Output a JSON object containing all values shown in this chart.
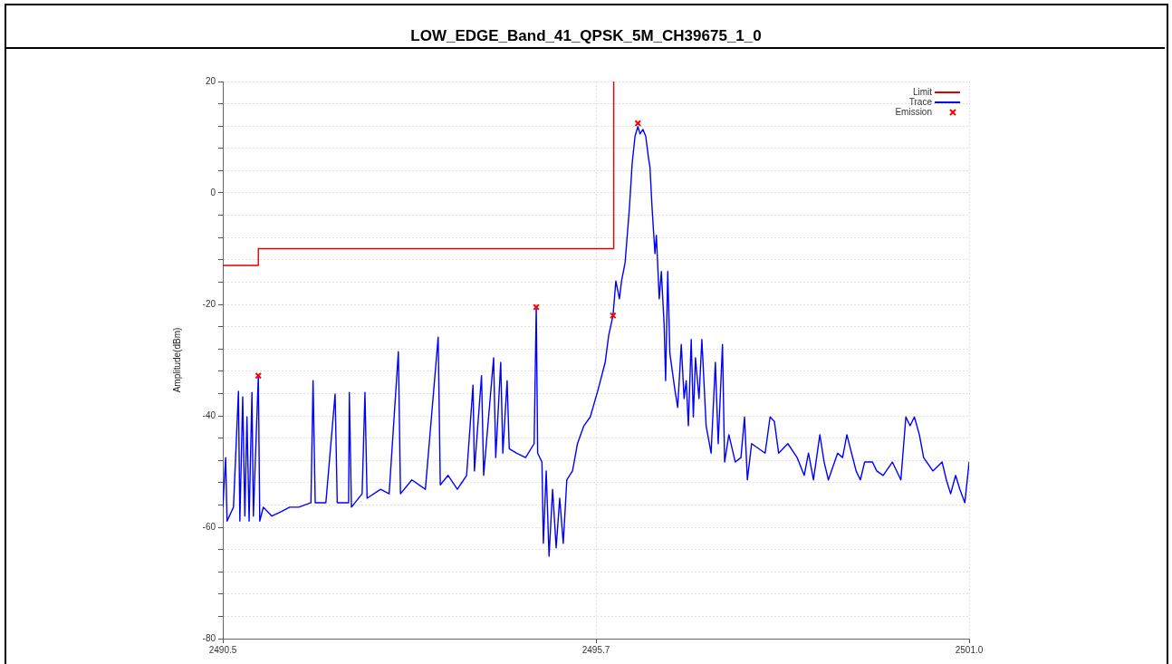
{
  "chart_data": {
    "type": "line",
    "title": "LOW_EDGE_Band_41_QPSK_5M_CH39675_1_0",
    "ylabel": "Amplitude(dBm)",
    "xlim": [
      2490.5,
      2501.0
    ],
    "xticks": [
      2490.5,
      {
        "value": 2495.75,
        "label": "2495.7"
      },
      {
        "value": 2501.0,
        "label": "2501.0"
      }
    ],
    "ylim": [
      -80,
      20
    ],
    "yticks": [
      -80,
      {
        "value": -76,
        "label": null
      },
      {
        "value": -72,
        "label": null
      },
      {
        "value": -68,
        "label": null
      },
      {
        "value": -64,
        "label": null
      },
      -60,
      {
        "value": -56,
        "label": null
      },
      {
        "value": -52,
        "label": null
      },
      {
        "value": -48,
        "label": null
      },
      {
        "value": -44,
        "label": null
      },
      -40,
      {
        "value": -36,
        "label": null
      },
      {
        "value": -32,
        "label": null
      },
      {
        "value": -28,
        "label": null
      },
      {
        "value": -24,
        "label": null
      },
      -20,
      {
        "value": -16,
        "label": null
      },
      {
        "value": -12,
        "label": null
      },
      {
        "value": -8,
        "label": null
      },
      {
        "value": -4,
        "label": null
      },
      0,
      {
        "value": 4,
        "label": null
      },
      {
        "value": 8,
        "label": null
      },
      {
        "value": 12,
        "label": null
      },
      {
        "value": 16,
        "label": null
      },
      20
    ],
    "grid": true,
    "legend": "top right",
    "marker": "none",
    "series": [
      {
        "name": "Limit",
        "color": "#e00000",
        "x": [
          2490.5,
          2491.0,
          2491.0,
          2496.0,
          2496.0
        ],
        "values": [
          -13,
          -13,
          -10,
          -10,
          20
        ]
      },
      {
        "name": "Trace",
        "color": "#0000ff",
        "x": [
          2490.5,
          2490.54,
          2490.56,
          2490.65,
          2490.72,
          2490.74,
          2490.78,
          2490.81,
          2490.84,
          2490.87,
          2490.91,
          2490.93,
          2491.0,
          2491.02,
          2491.07,
          2491.19,
          2491.32,
          2491.44,
          2491.57,
          2491.74,
          2491.77,
          2491.8,
          2491.95,
          2492.08,
          2492.11,
          2492.27,
          2492.28,
          2492.31,
          2492.46,
          2492.5,
          2492.53,
          2492.72,
          2492.84,
          2492.97,
          2493.0,
          2493.16,
          2493.35,
          2493.53,
          2493.56,
          2493.67,
          2493.8,
          2493.93,
          2494.02,
          2494.04,
          2494.14,
          2494.17,
          2494.31,
          2494.34,
          2494.41,
          2494.44,
          2494.5,
          2494.53,
          2494.63,
          2494.76,
          2494.88,
          2494.91,
          2494.93,
          2494.99,
          2495.01,
          2495.05,
          2495.09,
          2495.14,
          2495.19,
          2495.24,
          2495.29,
          2495.34,
          2495.42,
          2495.49,
          2495.58,
          2495.67,
          2495.78,
          2495.88,
          2495.93,
          2495.99,
          2496.03,
          2496.08,
          2496.11,
          2496.16,
          2496.22,
          2496.26,
          2496.3,
          2496.34,
          2496.37,
          2496.41,
          2496.45,
          2496.49,
          2496.51,
          2496.54,
          2496.58,
          2496.6,
          2496.64,
          2496.67,
          2496.71,
          2496.73,
          2496.76,
          2496.79,
          2496.86,
          2496.9,
          2496.95,
          2496.99,
          2497.02,
          2497.05,
          2497.09,
          2497.12,
          2497.15,
          2497.2,
          2497.24,
          2497.3,
          2497.37,
          2497.43,
          2497.47,
          2497.53,
          2497.56,
          2497.62,
          2497.71,
          2497.79,
          2497.84,
          2497.88,
          2497.94,
          2498.13,
          2498.2,
          2498.26,
          2498.32,
          2498.45,
          2498.58,
          2498.68,
          2498.74,
          2498.81,
          2498.9,
          2498.96,
          2499.02,
          2499.15,
          2499.22,
          2499.28,
          2499.41,
          2499.47,
          2499.53,
          2499.64,
          2499.7,
          2499.79,
          2499.92,
          2500.04,
          2500.11,
          2500.17,
          2500.23,
          2500.3,
          2500.36,
          2500.49,
          2500.62,
          2500.68,
          2500.74,
          2500.81,
          2500.87,
          2500.94,
          2501.0
        ],
        "values": [
          -56.4,
          -47.5,
          -58.9,
          -56.4,
          -35.6,
          -58.9,
          -36.6,
          -58.0,
          -40.2,
          -58.9,
          -35.8,
          -58.0,
          -32.8,
          -58.9,
          -56.4,
          -58.0,
          -57.2,
          -56.4,
          -56.4,
          -55.6,
          -33.7,
          -55.6,
          -55.6,
          -36.1,
          -55.6,
          -55.6,
          -35.8,
          -56.4,
          -54.0,
          -35.8,
          -54.8,
          -53.2,
          -54.0,
          -28.5,
          -54.0,
          -51.5,
          -53.2,
          -25.9,
          -52.4,
          -50.7,
          -53.2,
          -50.7,
          -34.5,
          -49.9,
          -32.8,
          -50.7,
          -29.6,
          -47.5,
          -30.4,
          -46.7,
          -33.7,
          -45.9,
          -46.7,
          -47.5,
          -45.0,
          -20.5,
          -46.7,
          -48.3,
          -62.9,
          -49.9,
          -65.2,
          -53.2,
          -63.7,
          -54.8,
          -62.9,
          -51.5,
          -49.9,
          -45.0,
          -41.8,
          -40.2,
          -35.3,
          -30.4,
          -25.5,
          -22.0,
          -15.8,
          -19.0,
          -15.8,
          -12.5,
          -2.8,
          5.4,
          10.2,
          11.9,
          10.6,
          11.4,
          10.2,
          6.2,
          4.6,
          -2.8,
          -10.9,
          -7.6,
          -19.0,
          -14.1,
          -23.9,
          -33.7,
          -14.1,
          -28.8,
          -35.3,
          -38.5,
          -27.2,
          -36.9,
          -33.7,
          -41.8,
          -26.3,
          -40.2,
          -29.6,
          -36.9,
          -26.3,
          -41.8,
          -46.7,
          -30.4,
          -45.0,
          -27.2,
          -48.3,
          -43.4,
          -48.3,
          -47.5,
          -40.2,
          -51.5,
          -45.0,
          -46.7,
          -40.2,
          -41.0,
          -46.7,
          -45.0,
          -47.5,
          -50.7,
          -46.7,
          -51.5,
          -43.4,
          -48.3,
          -51.5,
          -46.7,
          -47.5,
          -43.4,
          -49.9,
          -51.5,
          -48.3,
          -48.3,
          -49.9,
          -50.7,
          -48.3,
          -51.5,
          -40.2,
          -41.8,
          -40.2,
          -43.4,
          -47.5,
          -49.9,
          -48.3,
          -51.5,
          -54.0,
          -50.7,
          -53.2,
          -55.6,
          -48.3
        ]
      },
      {
        "name": "Emission",
        "type": "scatter",
        "marker": "cross",
        "color": "#ff0000",
        "x": [
          2491.0,
          2494.91,
          2495.99,
          2496.34
        ],
        "values": [
          -32.8,
          -20.5,
          -22.0,
          12.5
        ]
      }
    ]
  }
}
